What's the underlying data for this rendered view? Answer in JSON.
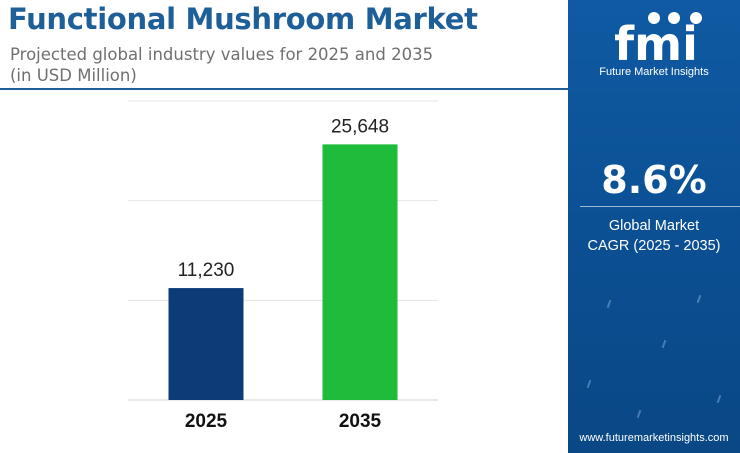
{
  "header": {
    "title": "Functional Mushroom Market",
    "subtitle_line1": "Projected global industry values for 2025 and 2035",
    "subtitle_line2": "(in USD Million)"
  },
  "sidebar": {
    "logo_text": "fmi",
    "logo_subtext": "Future Market Insights",
    "cagr_value": "8.6%",
    "cagr_label_line1": "Global Market",
    "cagr_label_line2": "CAGR (2025 - 2035)",
    "website": "www.futuremarketinsights.com"
  },
  "colors": {
    "title": "#1f5f98",
    "bar_2025": "#0c3b78",
    "bar_2035": "#1fbb3a",
    "sidebar": "#0c4f94"
  },
  "chart_data": {
    "type": "bar",
    "categories": [
      "2025",
      "2035"
    ],
    "values": [
      11230,
      25648
    ],
    "value_labels": [
      "11,230",
      "25,648"
    ],
    "colors": [
      "#0c3b78",
      "#1fbb3a"
    ],
    "ylim": [
      0,
      30000
    ],
    "grid": true
  }
}
